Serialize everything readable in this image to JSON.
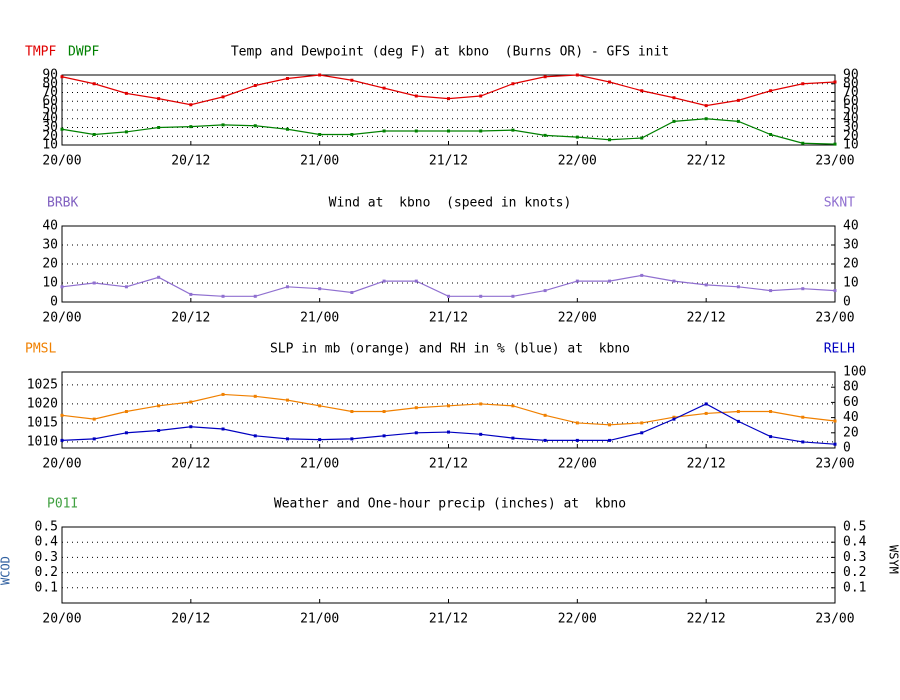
{
  "chart_data": [
    {
      "type": "line",
      "title": "Temp and Dewpoint (deg F) at kbno  (Burns OR) - GFS init",
      "x": [
        0,
        3,
        6,
        9,
        12,
        15,
        18,
        21,
        24,
        27,
        30,
        33,
        36,
        39,
        42,
        45,
        48,
        51,
        54,
        57,
        60,
        63,
        66,
        69,
        72
      ],
      "xlim": [
        0,
        72
      ],
      "xticks": [
        {
          "value": 0,
          "label": "20/00"
        },
        {
          "value": 12,
          "label": "20/12"
        },
        {
          "value": 24,
          "label": "21/00"
        },
        {
          "value": 36,
          "label": "21/12"
        },
        {
          "value": 48,
          "label": "22/00"
        },
        {
          "value": 60,
          "label": "22/12"
        },
        {
          "value": 72,
          "label": "23/00"
        }
      ],
      "ylim": [
        10,
        90
      ],
      "yticks": [
        10,
        20,
        30,
        40,
        50,
        60,
        70,
        80,
        90
      ],
      "y2lim": [
        10,
        90
      ],
      "y2ticks": [
        10,
        20,
        30,
        40,
        50,
        60,
        70,
        80,
        90
      ],
      "grid": true,
      "series": [
        {
          "name": "TMPF",
          "color": "#e00000",
          "values": [
            88,
            80,
            69,
            63,
            56,
            65,
            78,
            86,
            90,
            84,
            75,
            66,
            63,
            66,
            80,
            88,
            90,
            82,
            72,
            64,
            55,
            61,
            72,
            80,
            82
          ]
        },
        {
          "name": "DWPF",
          "color": "#008000",
          "values": [
            28,
            22,
            25,
            30,
            31,
            33,
            32,
            28,
            22,
            22,
            26,
            26,
            26,
            26,
            27,
            21,
            19,
            16,
            18,
            37,
            40,
            37,
            22,
            12,
            11
          ]
        }
      ]
    },
    {
      "type": "line",
      "title": "Wind at  kbno  (speed in knots)",
      "label_left": "BRBK",
      "x": [
        0,
        3,
        6,
        9,
        12,
        15,
        18,
        21,
        24,
        27,
        30,
        33,
        36,
        39,
        42,
        45,
        48,
        51,
        54,
        57,
        60,
        63,
        66,
        69,
        72
      ],
      "xlim": [
        0,
        72
      ],
      "xticks": [
        {
          "value": 0,
          "label": "20/00"
        },
        {
          "value": 12,
          "label": "20/12"
        },
        {
          "value": 24,
          "label": "21/00"
        },
        {
          "value": 36,
          "label": "21/12"
        },
        {
          "value": 48,
          "label": "22/00"
        },
        {
          "value": 60,
          "label": "22/12"
        },
        {
          "value": 72,
          "label": "23/00"
        }
      ],
      "ylim": [
        0,
        40
      ],
      "yticks": [
        0,
        10,
        20,
        30,
        40
      ],
      "y2lim": [
        0,
        40
      ],
      "y2ticks": [
        0,
        10,
        20,
        30,
        40
      ],
      "grid": true,
      "series": [
        {
          "name": "SKNT",
          "color": "#9070d0",
          "axis": "y2",
          "values": [
            8,
            10,
            8,
            13,
            4,
            3,
            3,
            8,
            7,
            5,
            11,
            11,
            3,
            3,
            3,
            6,
            11,
            11,
            14,
            11,
            9,
            8,
            6,
            7,
            6
          ]
        }
      ]
    },
    {
      "type": "line",
      "title": "SLP in mb (orange) and RH in % (blue) at  kbno",
      "x": [
        0,
        3,
        6,
        9,
        12,
        15,
        18,
        21,
        24,
        27,
        30,
        33,
        36,
        39,
        42,
        45,
        48,
        51,
        54,
        57,
        60,
        63,
        66,
        69,
        72
      ],
      "xlim": [
        0,
        72
      ],
      "xticks": [
        {
          "value": 0,
          "label": "20/00"
        },
        {
          "value": 12,
          "label": "20/12"
        },
        {
          "value": 24,
          "label": "21/00"
        },
        {
          "value": 36,
          "label": "21/12"
        },
        {
          "value": 48,
          "label": "22/00"
        },
        {
          "value": 60,
          "label": "22/12"
        },
        {
          "value": 72,
          "label": "23/00"
        }
      ],
      "ylim": [
        1008.4,
        1028.4
      ],
      "yticks": [
        1010,
        1015,
        1020,
        1025
      ],
      "y2lim": [
        0,
        100
      ],
      "y2ticks": [
        0,
        20,
        40,
        60,
        80,
        100
      ],
      "grid": true,
      "series": [
        {
          "name": "PMSL",
          "color": "#f08000",
          "values": [
            1017,
            1016,
            1018,
            1019.5,
            1020.5,
            1022.5,
            1022,
            1021,
            1019.5,
            1018,
            1018,
            1019,
            1019.5,
            1020,
            1019.5,
            1017,
            1015,
            1014.5,
            1015,
            1016.5,
            1017.5,
            1018,
            1018,
            1016.5,
            1015.5
          ]
        },
        {
          "name": "RELH",
          "color": "#0000c0",
          "axis": "y2",
          "values": [
            10,
            12,
            20,
            23,
            28,
            25,
            16,
            12,
            11,
            12,
            16,
            20,
            21,
            18,
            13,
            10,
            10,
            10,
            20,
            38,
            58,
            35,
            15,
            8,
            5
          ]
        }
      ]
    },
    {
      "type": "line",
      "title": "Weather and One-hour precip (inches) at  kbno",
      "label_left": "P01I",
      "label_side_left": "WCOD",
      "label_side_right": "WSYM",
      "x": [
        0,
        3,
        6,
        9,
        12,
        15,
        18,
        21,
        24,
        27,
        30,
        33,
        36,
        39,
        42,
        45,
        48,
        51,
        54,
        57,
        60,
        63,
        66,
        69,
        72
      ],
      "xlim": [
        0,
        72
      ],
      "xticks": [
        {
          "value": 0,
          "label": "20/00"
        },
        {
          "value": 12,
          "label": "20/12"
        },
        {
          "value": 24,
          "label": "21/00"
        },
        {
          "value": 36,
          "label": "21/12"
        },
        {
          "value": 48,
          "label": "22/00"
        },
        {
          "value": 60,
          "label": "22/12"
        },
        {
          "value": 72,
          "label": "23/00"
        }
      ],
      "ylim": [
        0,
        0.5
      ],
      "yticks": [
        0.1,
        0.2,
        0.3,
        0.4,
        0.5
      ],
      "y2lim": [
        0,
        0.5
      ],
      "y2ticks": [
        0.1,
        0.2,
        0.3,
        0.4,
        0.5
      ],
      "grid": true,
      "series": []
    }
  ]
}
